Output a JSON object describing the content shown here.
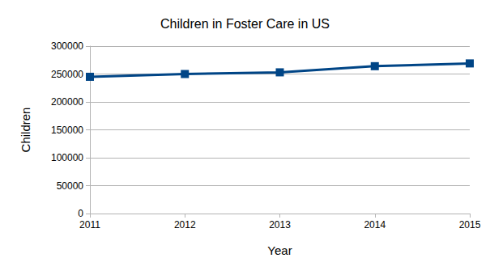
{
  "chart_data": {
    "type": "line",
    "title": "Children in Foster Care in US",
    "x_label": "Year",
    "y_label": "Children",
    "categories": [
      "2011",
      "2012",
      "2013",
      "2014",
      "2015"
    ],
    "values": [
      245000,
      250000,
      253000,
      264000,
      269000
    ],
    "color": "#004586",
    "marker": "square",
    "ylim": [
      0,
      300000
    ],
    "yticks": [
      0,
      50000,
      100000,
      150000,
      200000,
      250000,
      300000
    ],
    "grid": true
  }
}
